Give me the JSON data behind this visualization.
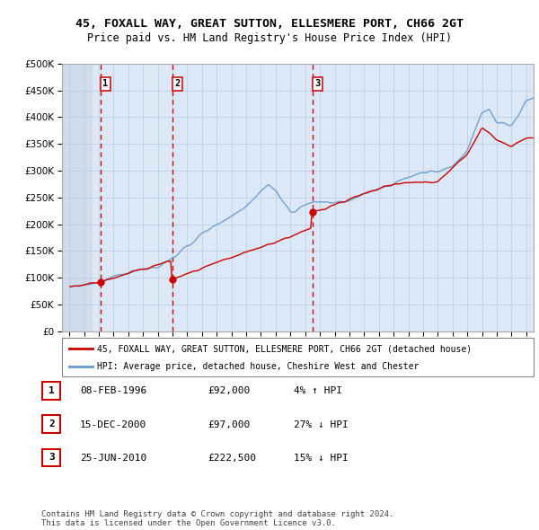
{
  "title": "45, FOXALL WAY, GREAT SUTTON, ELLESMERE PORT, CH66 2GT",
  "subtitle": "Price paid vs. HM Land Registry's House Price Index (HPI)",
  "legend_label_red": "45, FOXALL WAY, GREAT SUTTON, ELLESMERE PORT, CH66 2GT (detached house)",
  "legend_label_blue": "HPI: Average price, detached house, Cheshire West and Chester",
  "footer1": "Contains HM Land Registry data © Crown copyright and database right 2024.",
  "footer2": "This data is licensed under the Open Government Licence v3.0.",
  "sale_labels": [
    "1",
    "2",
    "3"
  ],
  "sale_dates_year": [
    1996.1,
    2001.0,
    2010.5
  ],
  "sale_prices": [
    92000,
    97000,
    222500
  ],
  "sale_dates_str": [
    "08-FEB-1996",
    "15-DEC-2000",
    "25-JUN-2010"
  ],
  "sale_prices_str": [
    "£92,000",
    "£97,000",
    "£222,500"
  ],
  "sale_hpi_str": [
    "4% ↑ HPI",
    "27% ↓ HPI",
    "15% ↓ HPI"
  ],
  "xlim": [
    1993.5,
    2025.5
  ],
  "ylim": [
    0,
    500000
  ],
  "yticks": [
    0,
    50000,
    100000,
    150000,
    200000,
    250000,
    300000,
    350000,
    400000,
    450000,
    500000
  ],
  "xtick_years": [
    1994,
    1995,
    1996,
    1997,
    1998,
    1999,
    2000,
    2001,
    2002,
    2003,
    2004,
    2005,
    2006,
    2007,
    2008,
    2009,
    2010,
    2011,
    2012,
    2013,
    2014,
    2015,
    2016,
    2017,
    2018,
    2019,
    2020,
    2021,
    2022,
    2023,
    2024,
    2025
  ],
  "hpi_color": "#6699cc",
  "price_color": "#cc0000",
  "vline_color": "#cc0000",
  "grid_color": "#b8cce4",
  "hatch_color": "#d0dcea",
  "bg_color": "#dce8f5"
}
